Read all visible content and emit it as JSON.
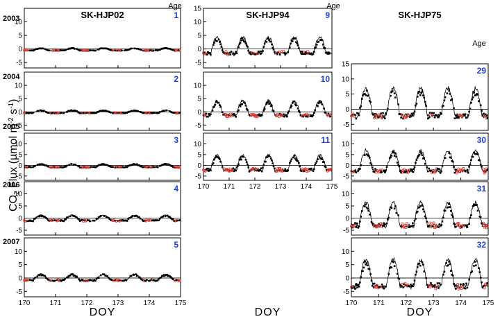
{
  "chart_data": {
    "type": "scatter",
    "description_series": [
      {
        "name": "",
        "marker": "filled-square",
        "color": "#000000"
      },
      {
        "name": "",
        "marker": "open-circle",
        "color": "#e8332a"
      },
      {
        "name": "",
        "marker": "line",
        "color": "#000000"
      }
    ],
    "xlabel": "DOY",
    "ylabel": {
      "prefix": "CO",
      "sub": "2",
      "rest": " Flux (µmol m",
      "sup1": "-2",
      "mid": " s",
      "sup2": "-1",
      "end": ")"
    },
    "age_header": "Age",
    "years": [
      "2003",
      "2004",
      "2005",
      "2006",
      "2007"
    ],
    "x_ticks": [
      "170",
      "171",
      "172",
      "173",
      "174",
      "175"
    ],
    "xlim": [
      170,
      175
    ],
    "y_ticks": [
      "-5",
      "0",
      "5",
      "10"
    ],
    "y_ticks_full": [
      "-5",
      "0",
      "5",
      "10",
      "15"
    ],
    "ylim": [
      -7,
      15
    ],
    "sites": [
      {
        "name": "SK-HJP02",
        "panels": [
          {
            "year": "2003",
            "age": "1",
            "amp": 0.9,
            "base": -0.6,
            "red": 0.25,
            "seed": 3
          },
          {
            "year": "2004",
            "age": "2",
            "amp": 1.1,
            "base": -0.5,
            "red": 0.25,
            "seed": 5
          },
          {
            "year": "2005",
            "age": "3",
            "amp": 1.6,
            "base": -1.0,
            "red": 0.3,
            "seed": 7
          },
          {
            "year": "2006",
            "age": "4",
            "amp": 2.4,
            "base": -1.2,
            "red": 0.2,
            "seed": 11
          },
          {
            "year": "2007",
            "age": "5",
            "amp": 2.4,
            "base": -1.0,
            "red": 0.25,
            "seed": 13
          }
        ]
      },
      {
        "name": "SK-HJP94",
        "panels": [
          {
            "year": "2003",
            "age": "9",
            "amp": 6.0,
            "base": -1.8,
            "red": 0.15,
            "seed": 17
          },
          {
            "year": "2004",
            "age": "10",
            "amp": 5.5,
            "base": -1.5,
            "red": 0.2,
            "seed": 19
          },
          {
            "year": "2005",
            "age": "11",
            "amp": 7.0,
            "base": -2.5,
            "red": 0.5,
            "seed": 23
          }
        ]
      },
      {
        "name": "SK-HJP75",
        "panels": [
          {
            "year": "2004",
            "age": "29",
            "amp": 9.0,
            "base": -2.5,
            "red": 0.3,
            "seed": 29
          },
          {
            "year": "2005",
            "age": "30",
            "amp": 9.5,
            "base": -3.0,
            "red": 0.3,
            "seed": 31
          },
          {
            "year": "2006",
            "age": "31",
            "amp": 9.5,
            "base": -3.5,
            "red": 0.4,
            "seed": 37
          },
          {
            "year": "2007",
            "age": "32",
            "amp": 10.0,
            "base": -3.5,
            "red": 0.2,
            "seed": 41
          }
        ]
      }
    ]
  }
}
